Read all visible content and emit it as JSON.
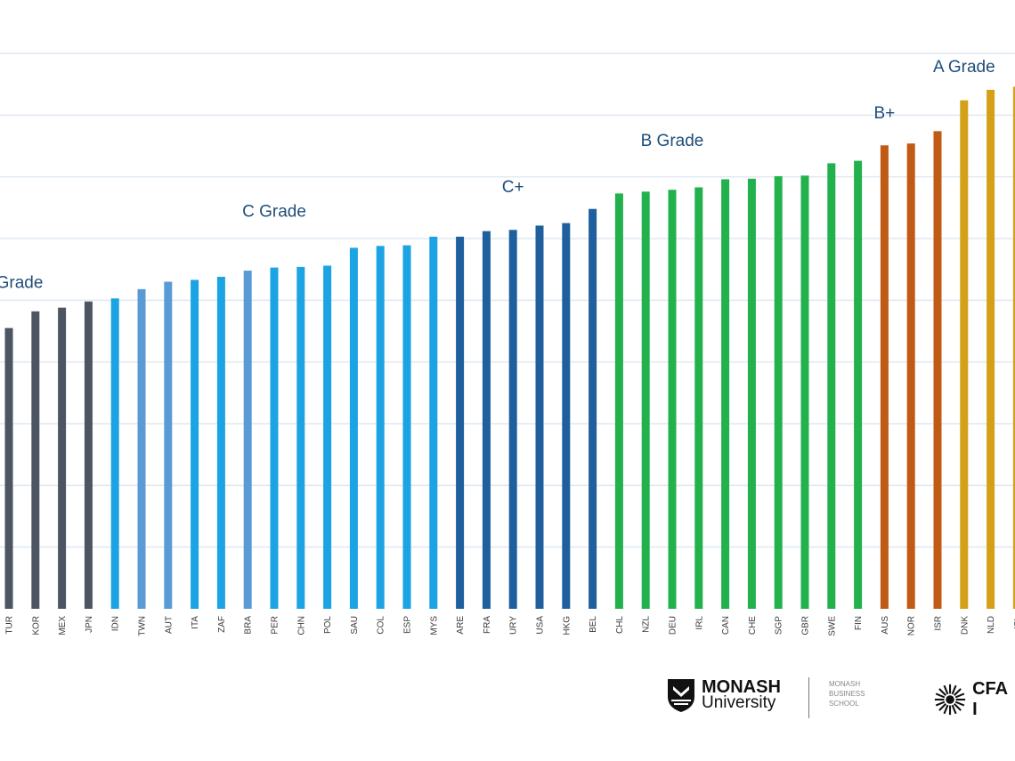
{
  "chart_data": {
    "type": "bar",
    "categories": [
      "TUR",
      "KOR",
      "MEX",
      "JPN",
      "IDN",
      "TWN",
      "AUT",
      "ITA",
      "ZAF",
      "BRA",
      "PER",
      "CHN",
      "POL",
      "SAU",
      "COL",
      "ESP",
      "MYS",
      "ARE",
      "FRA",
      "URY",
      "USA",
      "HKG",
      "BEL",
      "CHL",
      "NZL",
      "DEU",
      "IRL",
      "CAN",
      "CHE",
      "SGP",
      "GBR",
      "SWE",
      "FIN",
      "AUS",
      "NOR",
      "ISR",
      "DNK",
      "NLD",
      "ISL"
    ],
    "values": [
      45.5,
      48.2,
      48.8,
      49.8,
      50.3,
      51.8,
      53.0,
      53.3,
      53.8,
      54.8,
      55.3,
      55.4,
      55.6,
      58.5,
      58.8,
      58.9,
      60.3,
      60.3,
      61.2,
      61.4,
      62.1,
      62.5,
      64.8,
      67.3,
      67.6,
      67.9,
      68.3,
      69.6,
      69.7,
      70.1,
      70.2,
      72.2,
      72.6,
      75.1,
      75.4,
      77.4,
      82.4,
      84.1,
      84.6
    ],
    "colors": [
      "#4d5563",
      "#4d5563",
      "#4d5563",
      "#4d5563",
      "#1ba3e4",
      "#5b9bd5",
      "#5b9bd5",
      "#1ba3e4",
      "#1ba3e4",
      "#5b9bd5",
      "#1ba3e4",
      "#1ba3e4",
      "#1ba3e4",
      "#1ba3e4",
      "#1ba3e4",
      "#1ba3e4",
      "#1ba3e4",
      "#1f5f9e",
      "#1f5f9e",
      "#1f5f9e",
      "#1f5f9e",
      "#1f5f9e",
      "#1f5f9e",
      "#22b14c",
      "#22b14c",
      "#22b14c",
      "#22b14c",
      "#22b14c",
      "#22b14c",
      "#22b14c",
      "#22b14c",
      "#22b14c",
      "#22b14c",
      "#c05a14",
      "#c05a14",
      "#c05a14",
      "#d4a017",
      "#d4a017",
      "#d4a017"
    ],
    "ylim": [
      0,
      90
    ],
    "grid": true,
    "annotations": [
      {
        "text": "Grade",
        "x": "TUR",
        "y": 52
      },
      {
        "text": "C Grade",
        "x": "PER",
        "y": 63.5
      },
      {
        "text": "C+",
        "x": "URY",
        "y": 67.5
      },
      {
        "text": "B Grade",
        "x": "DEU",
        "y": 75
      },
      {
        "text": "B+",
        "x": "AUS",
        "y": 79.5
      },
      {
        "text": "A Grade",
        "x": "DNK",
        "y": 87
      }
    ]
  },
  "logos": {
    "monash_name": "MONASH",
    "monash_university": "University",
    "mbs_line1": "MONASH",
    "mbs_line2": "BUSINESS",
    "mbs_line3": "SCHOOL",
    "cfa_text": "CFA I"
  }
}
